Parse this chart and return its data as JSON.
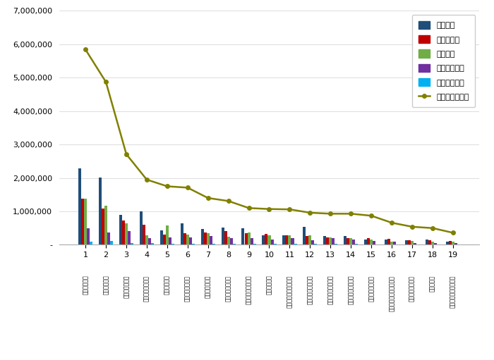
{
  "categories": [
    "부산항만공사",
    "인신항만공사",
    "국립해양박물관",
    "한국어왈어항공단",
    "해양환경공단",
    "한국수산자원공단",
    "국립해양홈보과",
    "한국해양홈보공사",
    "한국해양수산연수원",
    "울산항만공사",
    "한국해양교통안전공단",
    "한국해양표지기술원",
    "한국해양과학기술원",
    "국립해양생물자원관",
    "여수광양항만공사",
    "해양수산과학기술진흥원",
    "한국해양조사협회",
    "극지연구소",
    "선박해양플랜트연구소"
  ],
  "rank_labels": [
    "1",
    "2",
    "3",
    "4",
    "5",
    "6",
    "7",
    "8",
    "9",
    "10",
    "11",
    "12",
    "13",
    "14",
    "15",
    "16",
    "17",
    "18",
    "19"
  ],
  "참여지수": [
    2280000,
    2020000,
    890000,
    1010000,
    430000,
    650000,
    470000,
    520000,
    500000,
    280000,
    290000,
    540000,
    260000,
    270000,
    150000,
    150000,
    130000,
    150000,
    90000
  ],
  "미디어지수": [
    1370000,
    1080000,
    730000,
    600000,
    310000,
    350000,
    360000,
    420000,
    340000,
    320000,
    290000,
    270000,
    220000,
    210000,
    190000,
    170000,
    130000,
    130000,
    110000
  ],
  "소통지수": [
    1390000,
    1160000,
    640000,
    290000,
    570000,
    310000,
    340000,
    250000,
    370000,
    280000,
    290000,
    290000,
    220000,
    190000,
    150000,
    90000,
    120000,
    100000,
    100000
  ],
  "커뮤니티지수": [
    490000,
    360000,
    420000,
    200000,
    220000,
    230000,
    270000,
    210000,
    190000,
    160000,
    190000,
    130000,
    190000,
    160000,
    110000,
    100000,
    60000,
    60000,
    50000
  ],
  "사회공헌지수": [
    90000,
    110000,
    50000,
    50000,
    30000,
    40000,
    30000,
    30000,
    30000,
    30000,
    30000,
    30000,
    30000,
    30000,
    20000,
    20000,
    20000,
    20000,
    10000
  ],
  "브랜드평판지수": [
    5840000,
    4870000,
    2710000,
    1950000,
    1750000,
    1710000,
    1400000,
    1310000,
    1100000,
    1070000,
    1060000,
    960000,
    930000,
    930000,
    870000,
    660000,
    540000,
    500000,
    360000
  ],
  "bar_colors": {
    "참여지수": "#1f4e79",
    "미디어지수": "#c00000",
    "소통지수": "#70ad47",
    "커뮤니티지수": "#7030a0",
    "사회공헌지수": "#00b0f0"
  },
  "line_color": "#808000",
  "ylim": [
    0,
    7000000
  ],
  "yticks": [
    0,
    1000000,
    2000000,
    3000000,
    4000000,
    5000000,
    6000000,
    7000000
  ],
  "background_color": "#ffffff",
  "legend_labels": [
    "참여지수",
    "미디어지수",
    "소통지수",
    "커뮤니티지수",
    "사회공헌지수",
    "브랜드평판지수"
  ]
}
